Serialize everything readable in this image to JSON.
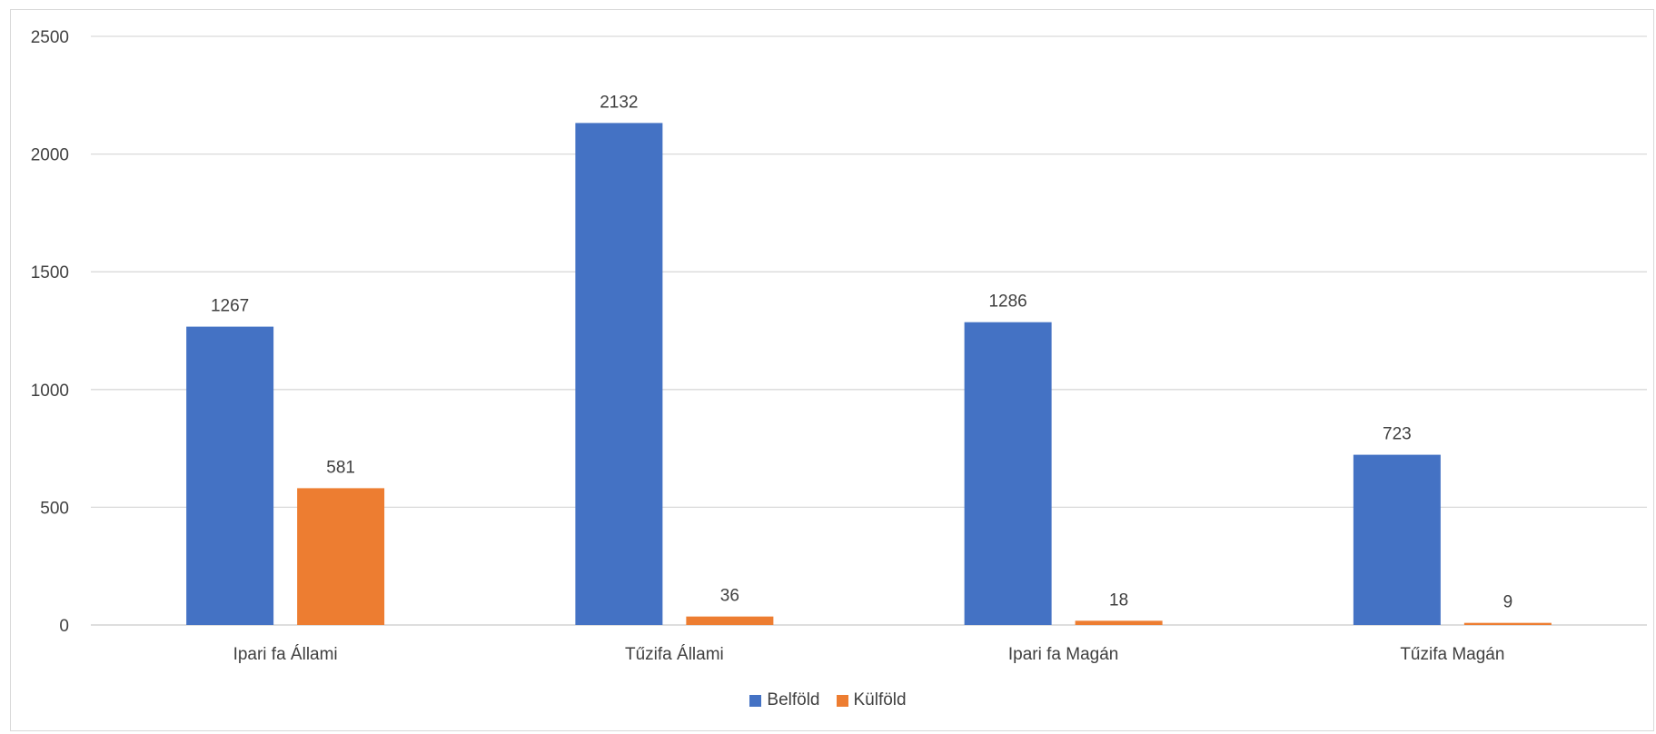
{
  "chart_data": {
    "type": "bar",
    "categories": [
      "Ipari fa  Állami",
      "Tűzifa  Állami",
      "Ipari fa Magán",
      "Tűzifa Magán"
    ],
    "series": [
      {
        "name": "Belföld",
        "values": [
          1267,
          2132,
          1286,
          723
        ],
        "color": "#4472C4"
      },
      {
        "name": "Külföld",
        "values": [
          581,
          36,
          18,
          9
        ],
        "color": "#ED7D31"
      }
    ],
    "title": "",
    "xlabel": "",
    "ylabel": "",
    "ylim": [
      0,
      2500
    ],
    "yticks": [
      0,
      500,
      1000,
      1500,
      2000,
      2500
    ],
    "grid": true,
    "legend_position": "bottom",
    "data_labels": true
  }
}
